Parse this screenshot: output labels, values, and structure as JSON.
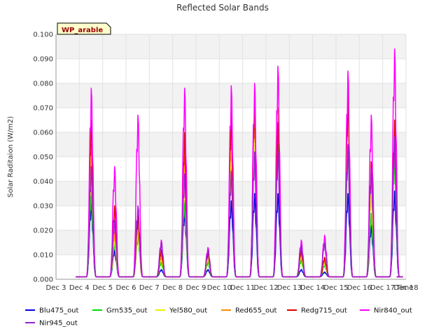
{
  "chart_data": {
    "type": "line",
    "title": "Reflected Solar Bands",
    "xlabel": "Time",
    "ylabel": "Solar Raditaion (W/m2)",
    "badge": "WP_arable",
    "xlim": [
      "Dec 3",
      "Dec 18"
    ],
    "ylim": [
      0.0,
      0.1
    ],
    "x_ticks": [
      "Dec 3",
      "Dec 4",
      "Dec 5",
      "Dec 6",
      "Dec 7",
      "Dec 8",
      "Dec 9",
      "Dec 10",
      "Dec 11",
      "Dec 12",
      "Dec 13",
      "Dec 14",
      "Dec 15",
      "Dec 16",
      "Dec 17",
      "Dec 18"
    ],
    "y_ticks": [
      "0.000",
      "0.010",
      "0.020",
      "0.030",
      "0.040",
      "0.050",
      "0.060",
      "0.070",
      "0.080",
      "0.090",
      "0.100"
    ],
    "grid": true,
    "legend_position": "bottom",
    "baseline_night": 0.001,
    "days": [
      "Dec 4",
      "Dec 5",
      "Dec 6",
      "Dec 7",
      "Dec 8",
      "Dec 9",
      "Dec 10",
      "Dec 11",
      "Dec 12",
      "Dec 13",
      "Dec 14",
      "Dec 15",
      "Dec 16",
      "Dec 17"
    ],
    "series": [
      {
        "name": "Blu475_out",
        "color": "#0000dd",
        "daily_peaks": [
          0.031,
          0.012,
          0.022,
          0.004,
          0.028,
          0.004,
          0.032,
          0.035,
          0.035,
          0.004,
          0.003,
          0.035,
          0.022,
          0.036
        ]
      },
      {
        "name": "Grn535_out",
        "color": "#00dd00",
        "daily_peaks": [
          0.036,
          0.015,
          0.018,
          0.007,
          0.032,
          0.007,
          0.045,
          0.052,
          0.055,
          0.008,
          0.006,
          0.052,
          0.027,
          0.05
        ]
      },
      {
        "name": "Yel580_out",
        "color": "#eeee00",
        "daily_peaks": [
          0.044,
          0.017,
          0.02,
          0.009,
          0.04,
          0.009,
          0.055,
          0.066,
          0.068,
          0.01,
          0.007,
          0.066,
          0.036,
          0.058
        ]
      },
      {
        "name": "Red655_out",
        "color": "#ff8c00",
        "daily_peaks": [
          0.055,
          0.02,
          0.023,
          0.01,
          0.052,
          0.01,
          0.062,
          0.072,
          0.07,
          0.011,
          0.008,
          0.073,
          0.045,
          0.062
        ]
      },
      {
        "name": "Redg715_out",
        "color": "#dd0000",
        "daily_peaks": [
          0.065,
          0.03,
          0.026,
          0.012,
          0.06,
          0.011,
          0.068,
          0.074,
          0.064,
          0.012,
          0.009,
          0.075,
          0.048,
          0.065
        ]
      },
      {
        "name": "Nir840_out",
        "color": "#ff00ff",
        "daily_peaks": [
          0.078,
          0.046,
          0.067,
          0.016,
          0.078,
          0.013,
          0.079,
          0.08,
          0.087,
          0.016,
          0.018,
          0.085,
          0.067,
          0.094
        ]
      },
      {
        "name": "Nir945_out",
        "color": "#9922cc",
        "daily_peaks": [
          0.046,
          0.024,
          0.03,
          0.015,
          0.043,
          0.012,
          0.044,
          0.052,
          0.052,
          0.014,
          0.015,
          0.055,
          0.045,
          0.058
        ]
      }
    ]
  }
}
